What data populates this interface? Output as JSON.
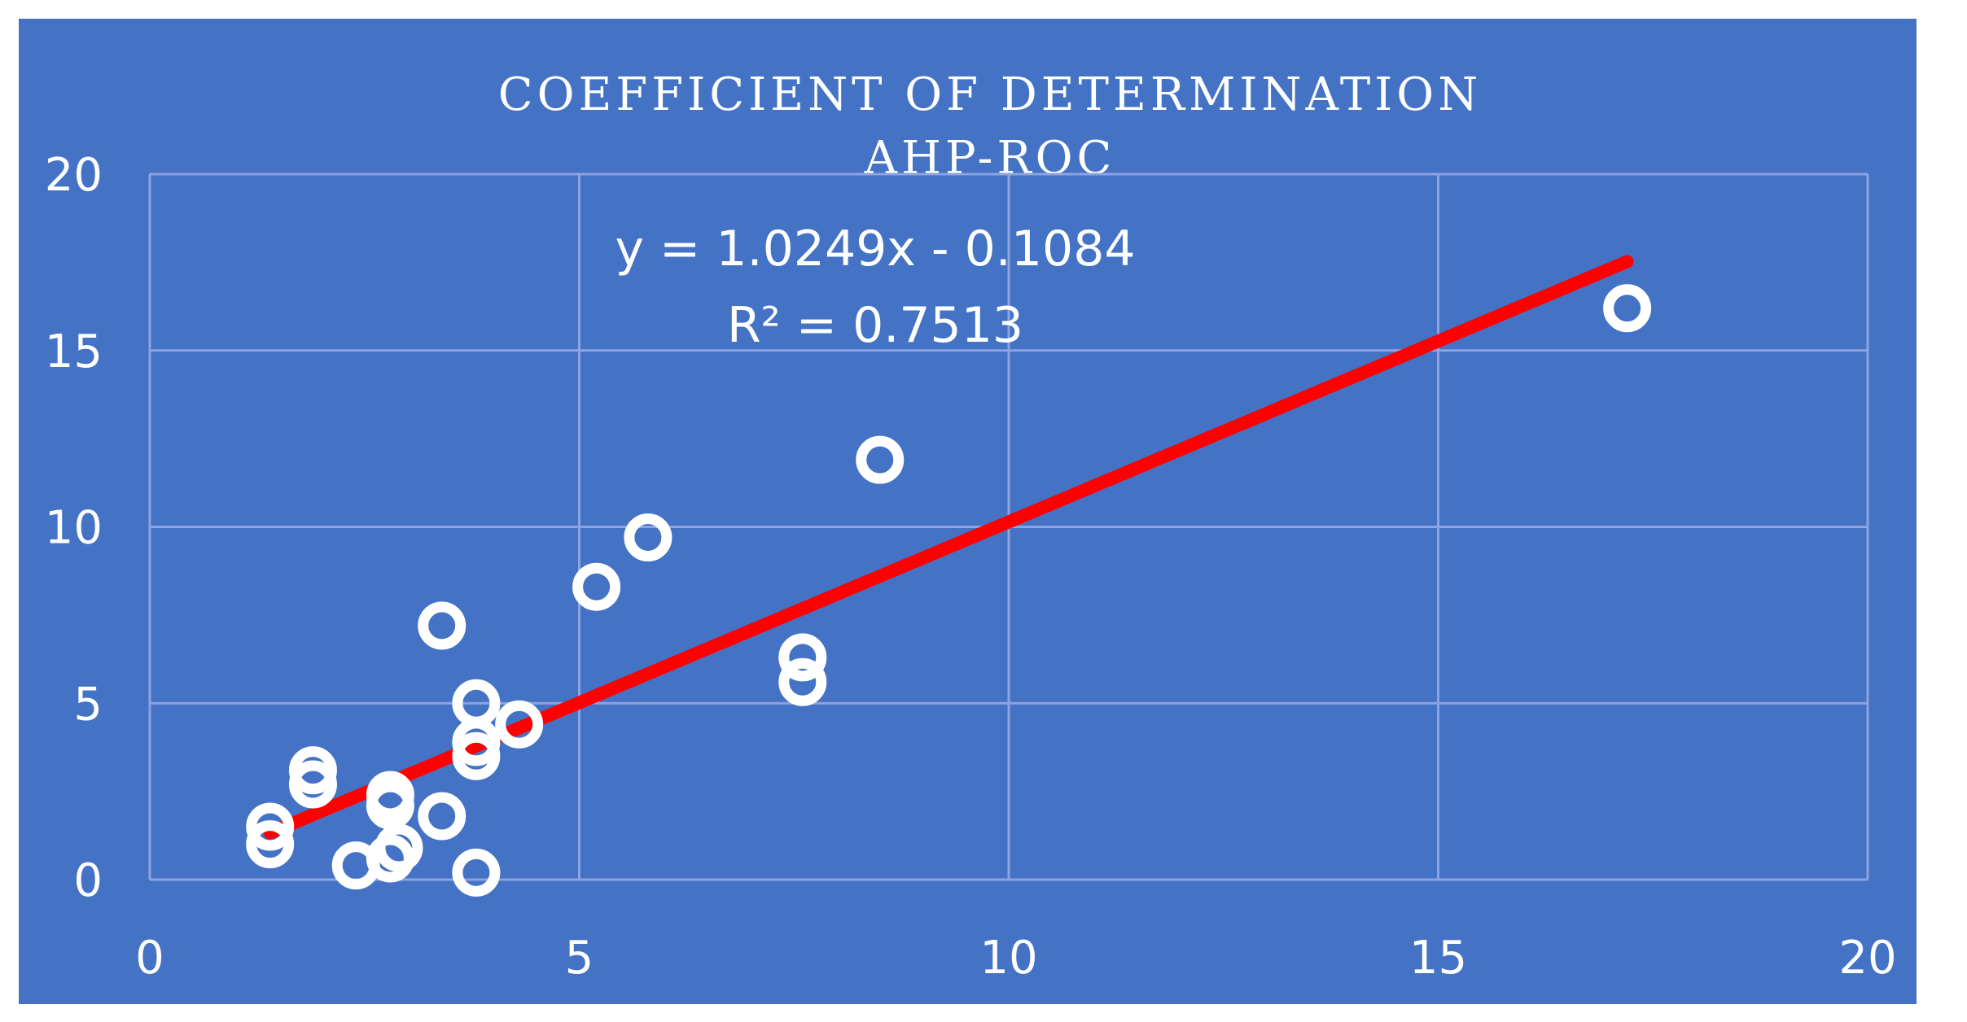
{
  "colors": {
    "background": "#4472c4",
    "text": "#ffffff",
    "gridline": "#8ea3df",
    "marker": "#ffffff",
    "trendline": "#ff0000"
  },
  "chart_data": {
    "type": "scatter",
    "title": "COEFFICIENT OF DETERMINATION",
    "subtitle": "AHP-ROC",
    "xlim": [
      0,
      20
    ],
    "ylim": [
      0,
      20
    ],
    "x_ticks": [
      "0",
      "5",
      "10",
      "15",
      "20"
    ],
    "y_ticks": [
      "0",
      "5",
      "10",
      "15",
      "20"
    ],
    "grid": true,
    "legend": "none",
    "marker": "hollow-circle",
    "points": [
      {
        "x": 1.4,
        "y": 1.0
      },
      {
        "x": 1.4,
        "y": 1.5
      },
      {
        "x": 1.9,
        "y": 2.7
      },
      {
        "x": 1.9,
        "y": 3.1
      },
      {
        "x": 2.4,
        "y": 0.4
      },
      {
        "x": 2.8,
        "y": 0.6
      },
      {
        "x": 2.9,
        "y": 0.9
      },
      {
        "x": 2.8,
        "y": 2.1
      },
      {
        "x": 2.8,
        "y": 2.4
      },
      {
        "x": 3.4,
        "y": 1.8
      },
      {
        "x": 3.4,
        "y": 7.2
      },
      {
        "x": 3.8,
        "y": 0.2
      },
      {
        "x": 3.8,
        "y": 3.5
      },
      {
        "x": 3.8,
        "y": 3.9
      },
      {
        "x": 3.8,
        "y": 5.0
      },
      {
        "x": 4.3,
        "y": 4.4
      },
      {
        "x": 5.2,
        "y": 8.3
      },
      {
        "x": 5.8,
        "y": 9.7
      },
      {
        "x": 7.6,
        "y": 5.6
      },
      {
        "x": 7.6,
        "y": 6.3
      },
      {
        "x": 8.5,
        "y": 11.9
      },
      {
        "x": 17.2,
        "y": 16.2
      }
    ],
    "trendline": {
      "type": "linear",
      "slope": 1.0249,
      "intercept": -0.1084,
      "x_range": [
        1.4,
        17.2
      ],
      "equation": "y = 1.0249x - 0.1084",
      "r_squared": "R² = 0.7513"
    }
  }
}
